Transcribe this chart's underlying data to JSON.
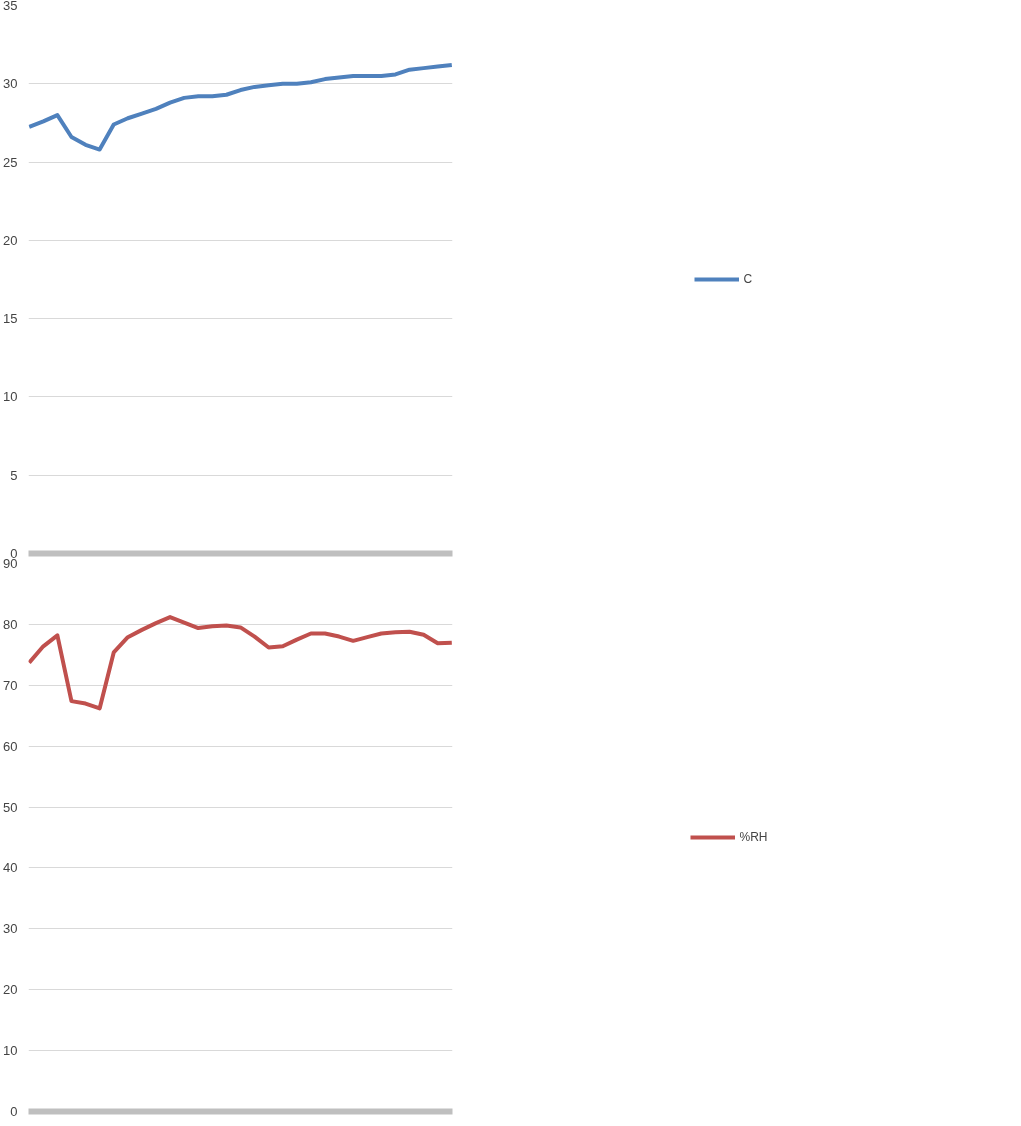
{
  "chart_data": [
    {
      "type": "line",
      "categories": [
        null,
        null,
        null,
        null,
        null,
        null,
        null,
        null,
        null,
        null,
        null,
        null,
        null,
        null,
        null,
        null,
        null,
        null,
        null,
        null,
        null,
        null,
        null,
        null,
        null,
        null,
        null,
        null,
        null,
        null,
        null
      ],
      "series": [
        {
          "name": "C",
          "color": "#4f81bd",
          "values": [
            27.25,
            27.6,
            28.0,
            26.6,
            26.1,
            25.8,
            27.4,
            27.8,
            28.1,
            28.4,
            28.8,
            29.1,
            29.2,
            29.2,
            29.3,
            29.6,
            29.8,
            29.9,
            30.0,
            30.0,
            30.1,
            30.3,
            30.4,
            30.5,
            30.5,
            30.5,
            30.6,
            30.9,
            31.0,
            31.1,
            31.2
          ]
        }
      ],
      "ylim": [
        0,
        35
      ],
      "yticks": [
        0,
        5,
        10,
        15,
        20,
        25,
        30,
        35
      ],
      "grid": "y",
      "legend": "right",
      "tick_labels": "y"
    },
    {
      "type": "line",
      "categories": [
        null,
        null,
        null,
        null,
        null,
        null,
        null,
        null,
        null,
        null,
        null,
        null,
        null,
        null,
        null,
        null,
        null,
        null,
        null,
        null,
        null,
        null,
        null,
        null,
        null,
        null,
        null,
        null,
        null,
        null,
        null
      ],
      "series": [
        {
          "name": "%RH",
          "color": "#c0504d",
          "values": [
            73.7,
            76.4,
            78.2,
            67.4,
            67.0,
            66.2,
            75.4,
            77.9,
            79.1,
            80.2,
            81.2,
            80.3,
            79.4,
            79.7,
            79.8,
            79.5,
            78.0,
            76.2,
            76.4,
            77.5,
            78.5,
            78.5,
            78.0,
            77.3,
            77.9,
            78.5,
            78.7,
            78.8,
            78.3,
            76.9,
            77.0
          ]
        }
      ],
      "ylim": [
        0,
        90
      ],
      "yticks": [
        0,
        10,
        20,
        30,
        40,
        50,
        60,
        70,
        80,
        90
      ],
      "grid": "y",
      "legend": "right",
      "tick_labels": "y"
    }
  ]
}
